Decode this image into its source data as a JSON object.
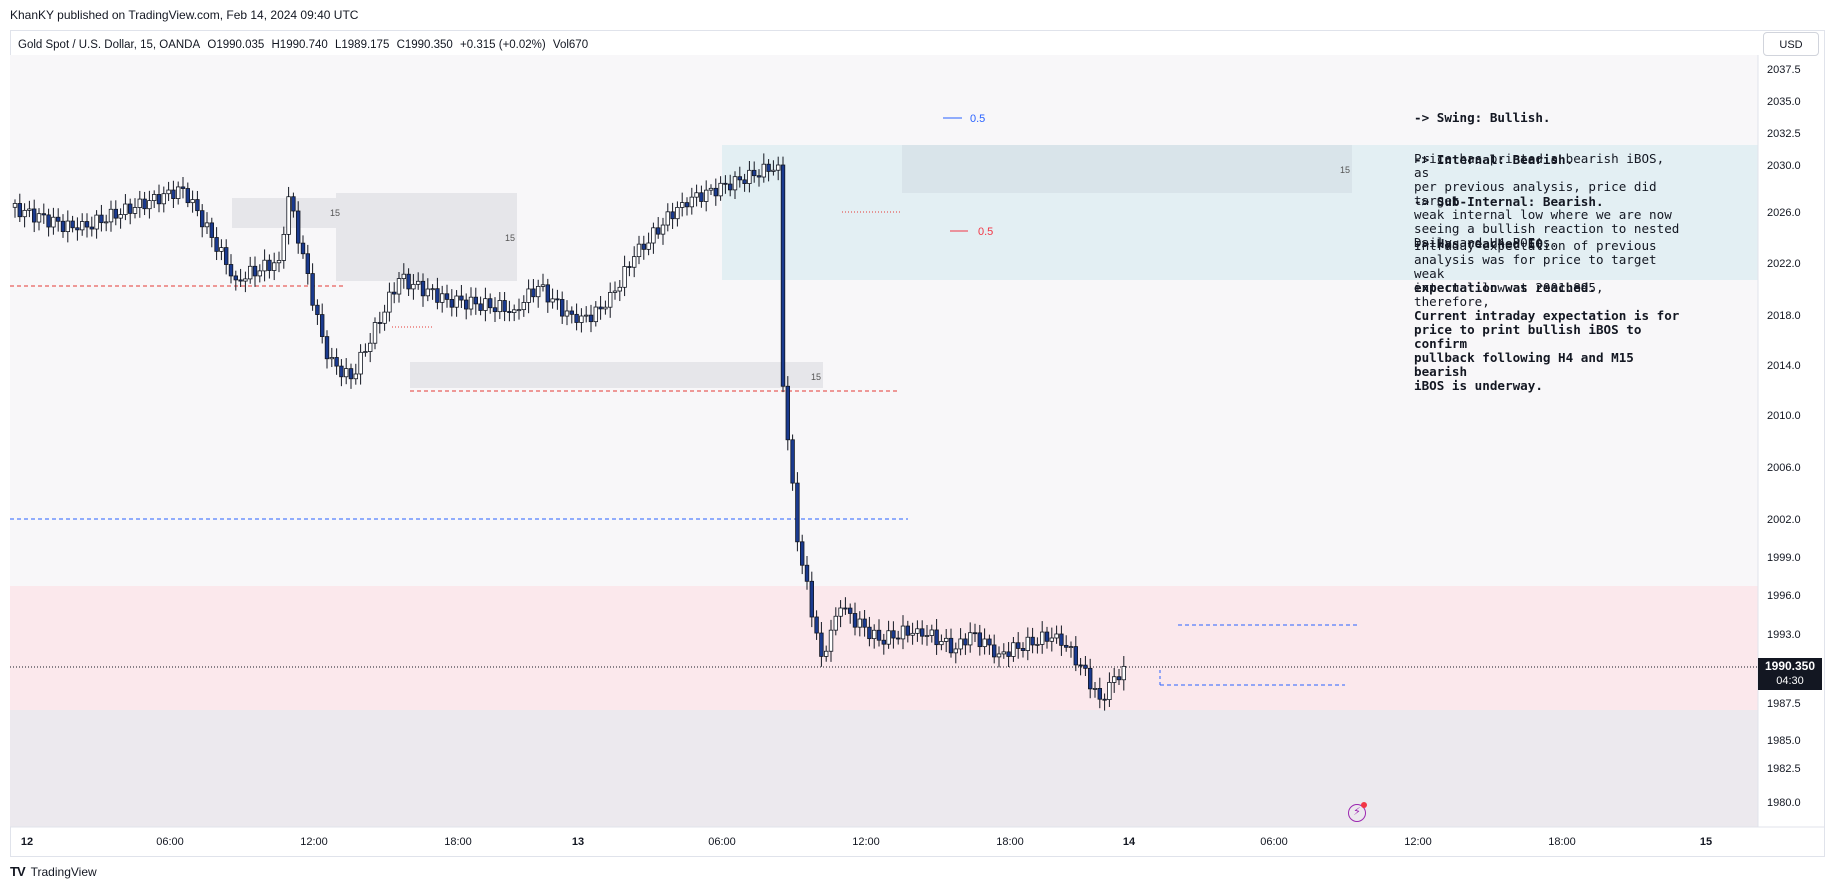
{
  "header": {
    "published": "KhanKY published on TradingView.com, Feb 14, 2024 09:40 UTC"
  },
  "legend": {
    "symbol": "Gold Spot / U.S. Dollar, 15, OANDA",
    "open": "O1990.035",
    "high": "H1990.740",
    "low": "L1989.175",
    "close": "C1990.350",
    "change": "+0.315 (+0.02%)",
    "volume": "Vol670"
  },
  "currency": "USD",
  "price_tag": {
    "price": "1990.350",
    "countdown": "04:30"
  },
  "notes": {
    "bias_lines": [
      "-> Swing: Bullish.",
      "-> Internal: Bearish.",
      "-> Sub-Internal: Bearish.",
      "-> Has reached EQ."
    ],
    "para1": "Price has printed a bearish iBOS, as\nper previous analysis, price did target\nweak internal low where we are now\nseeing a bullish reaction to nested\nDaily and H4 POI's.",
    "para2_normal": "Intraday expectation of previous\nanalysis was for price to target weak\ninternal low at 2001.895, therefore,",
    "para2_bold": "expectation was reached.",
    "para3": "Current intraday expectation is for\nprice to print bullish iBOS to confirm\npullback following H4 and M15 bearish\niBOS is underway."
  },
  "footer": {
    "logo": "TV",
    "brand": "TradingView"
  },
  "chart_data": {
    "type": "candlestick",
    "symbol": "XAUUSD",
    "interval": "15",
    "y_axis": {
      "ticks": [
        1980.0,
        1982.5,
        1985.0,
        1987.5,
        1990.35,
        1993.0,
        1996.0,
        1999.0,
        2002.0,
        2006.0,
        2010.0,
        2014.0,
        2018.0,
        2022.0,
        2026.0,
        2030.0,
        2032.5,
        2035.0,
        2037.5
      ],
      "tick_labels": [
        "1980.0",
        "1982.5",
        "1985.0",
        "1987.5",
        "",
        "1993.0",
        "1996.0",
        "1999.0",
        "2002.0",
        "2006.0",
        "2010.0",
        "2014.0",
        "2018.0",
        "2022.0",
        "2026.0",
        "2030.0",
        "2032.5",
        "2035.0",
        "2037.5"
      ]
    },
    "x_axis": {
      "ticks": [
        "12",
        "06:00",
        "12:00",
        "18:00",
        "13",
        "06:00",
        "12:00",
        "18:00",
        "14",
        "06:00",
        "12:00",
        "18:00",
        "15"
      ],
      "bold_ticks": [
        "12",
        "13",
        "14",
        "15"
      ]
    },
    "last_price": 1990.35,
    "annotations": {
      "fib_labels": [
        {
          "text": "0.5",
          "color": "#2962ff"
        },
        {
          "text": "0.5",
          "color": "#f23645"
        }
      ],
      "zone_labels": [
        "15",
        "15",
        "15",
        "15"
      ]
    },
    "segments": [
      {
        "from": 2026.4,
        "to": 2024.6,
        "n": 14
      },
      {
        "from": 2024.6,
        "to": 2028.0,
        "n": 22
      },
      {
        "from": 2028.0,
        "to": 2020.7,
        "n": 11
      },
      {
        "from": 2020.7,
        "to": 2022.2,
        "n": 9
      },
      {
        "from": 2022.2,
        "to": 2027.3,
        "n": 2
      },
      {
        "from": 2027.3,
        "to": 2014.5,
        "n": 8
      },
      {
        "from": 2014.5,
        "to": 2012.9,
        "n": 5
      },
      {
        "from": 2012.9,
        "to": 2020.8,
        "n": 10
      },
      {
        "from": 2020.8,
        "to": 2019.2,
        "n": 10
      },
      {
        "from": 2019.2,
        "to": 2018.4,
        "n": 14
      },
      {
        "from": 2018.4,
        "to": 2020.2,
        "n": 5
      },
      {
        "from": 2020.2,
        "to": 2017.4,
        "n": 8
      },
      {
        "from": 2017.4,
        "to": 2018.6,
        "n": 6
      },
      {
        "from": 2018.6,
        "to": 2022.5,
        "n": 6
      },
      {
        "from": 2022.5,
        "to": 2026.8,
        "n": 10
      },
      {
        "from": 2026.8,
        "to": 2030.0,
        "n": 20
      },
      {
        "from": 2030.0,
        "to": 2012.3,
        "n": 1
      },
      {
        "from": 2012.3,
        "to": 2000.2,
        "n": 3
      },
      {
        "from": 2000.2,
        "to": 1991.2,
        "n": 5
      },
      {
        "from": 1991.2,
        "to": 1995.0,
        "n": 4
      },
      {
        "from": 1995.0,
        "to": 1992.5,
        "n": 8
      },
      {
        "from": 1992.5,
        "to": 1993.4,
        "n": 8
      },
      {
        "from": 1993.4,
        "to": 1991.8,
        "n": 8
      },
      {
        "from": 1991.8,
        "to": 1993.1,
        "n": 3
      },
      {
        "from": 1993.1,
        "to": 1991.4,
        "n": 6
      },
      {
        "from": 1991.4,
        "to": 1993.0,
        "n": 12
      },
      {
        "from": 1993.0,
        "to": 1990.5,
        "n": 5
      },
      {
        "from": 1990.5,
        "to": 1987.8,
        "n": 4
      },
      {
        "from": 1987.8,
        "to": 1990.4,
        "n": 5
      }
    ]
  }
}
